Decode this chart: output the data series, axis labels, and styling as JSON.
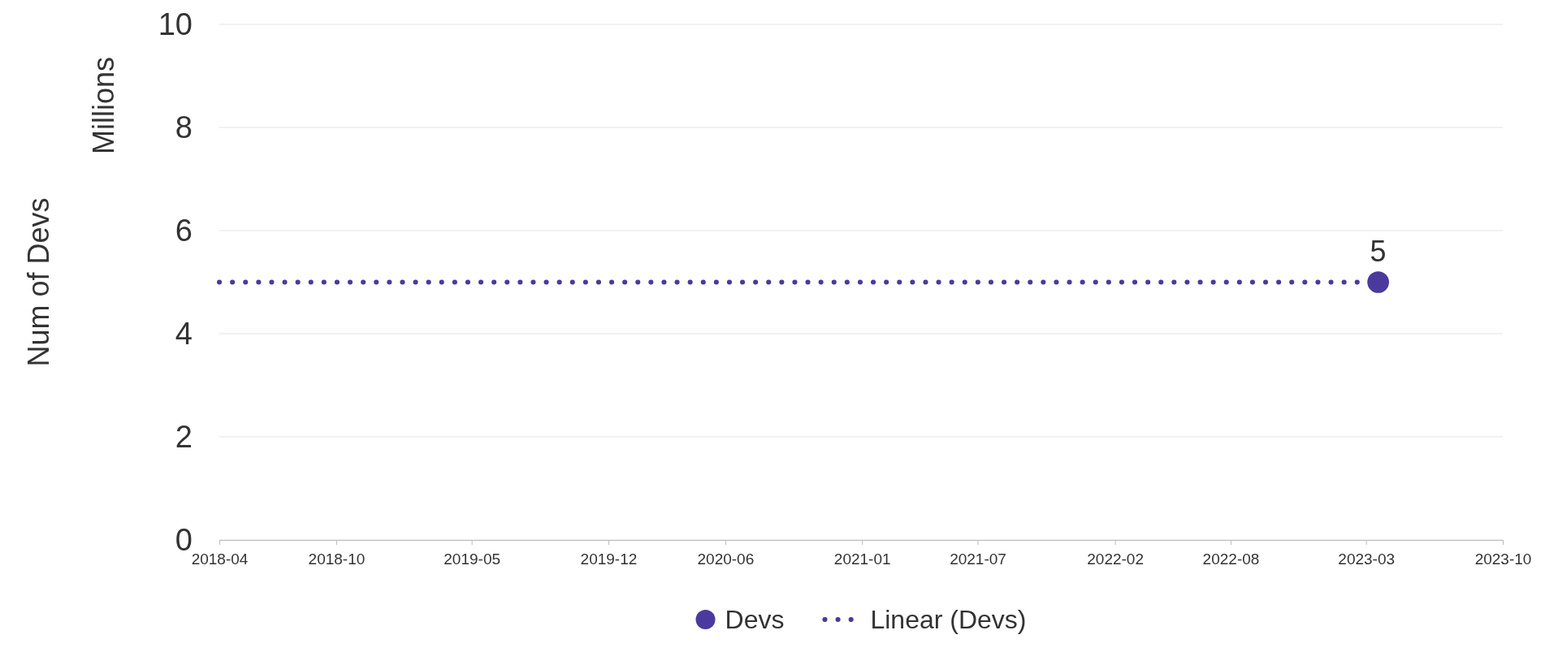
{
  "chart_data": {
    "type": "scatter",
    "ylabel": "Num of Devs",
    "annotations": [
      "Millions"
    ],
    "xlim": [
      "2018-04",
      "2023-10"
    ],
    "xticks": [
      "2018-04",
      "2018-10",
      "2019-05",
      "2019-12",
      "2020-06",
      "2021-01",
      "2021-07",
      "2022-02",
      "2022-08",
      "2023-03",
      "2023-10"
    ],
    "ylim": [
      0,
      10
    ],
    "yticks": [
      0,
      2,
      4,
      6,
      8,
      10
    ],
    "grid": "y",
    "legend": "bottom",
    "series": [
      {
        "name": "Devs",
        "color": "#4b3a9c",
        "x": [
          "2023-03-20"
        ],
        "values": [
          5
        ],
        "value_labels": [
          "5"
        ],
        "marker": "circle"
      },
      {
        "name": "Linear (Devs)",
        "type": "line",
        "color": "#4b3a9c",
        "x": [
          "2018-04",
          "2023-03-20"
        ],
        "values": [
          5,
          5
        ],
        "line_style": "dotted"
      }
    ]
  }
}
